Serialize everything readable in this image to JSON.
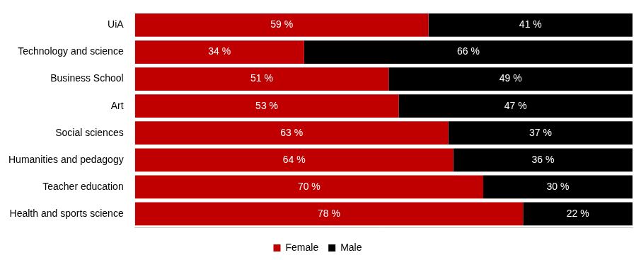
{
  "chart_data": {
    "type": "bar",
    "orientation": "horizontal",
    "stacked": true,
    "categories": [
      "UiA",
      "Technology and science",
      "Business School",
      "Art",
      "Social sciences",
      "Humanities and pedagogy",
      "Teacher education",
      "Health and sports science"
    ],
    "series": [
      {
        "name": "Female",
        "color": "#c00000",
        "values": [
          59,
          34,
          51,
          53,
          63,
          64,
          70,
          78
        ],
        "value_labels": [
          "59 %",
          "34 %",
          "51 %",
          "53 %",
          "63 %",
          "64 %",
          "70 %",
          "78 %"
        ]
      },
      {
        "name": "Male",
        "color": "#000000",
        "values": [
          41,
          66,
          49,
          47,
          37,
          36,
          30,
          22
        ],
        "value_labels": [
          "41 %",
          "66 %",
          "49 %",
          "47 %",
          "37 %",
          "36 %",
          "30 %",
          "22 %"
        ]
      }
    ],
    "xlim": [
      0,
      100
    ],
    "grid": false,
    "legend": "bottom",
    "data_labels": true,
    "tick_labels": "y"
  }
}
